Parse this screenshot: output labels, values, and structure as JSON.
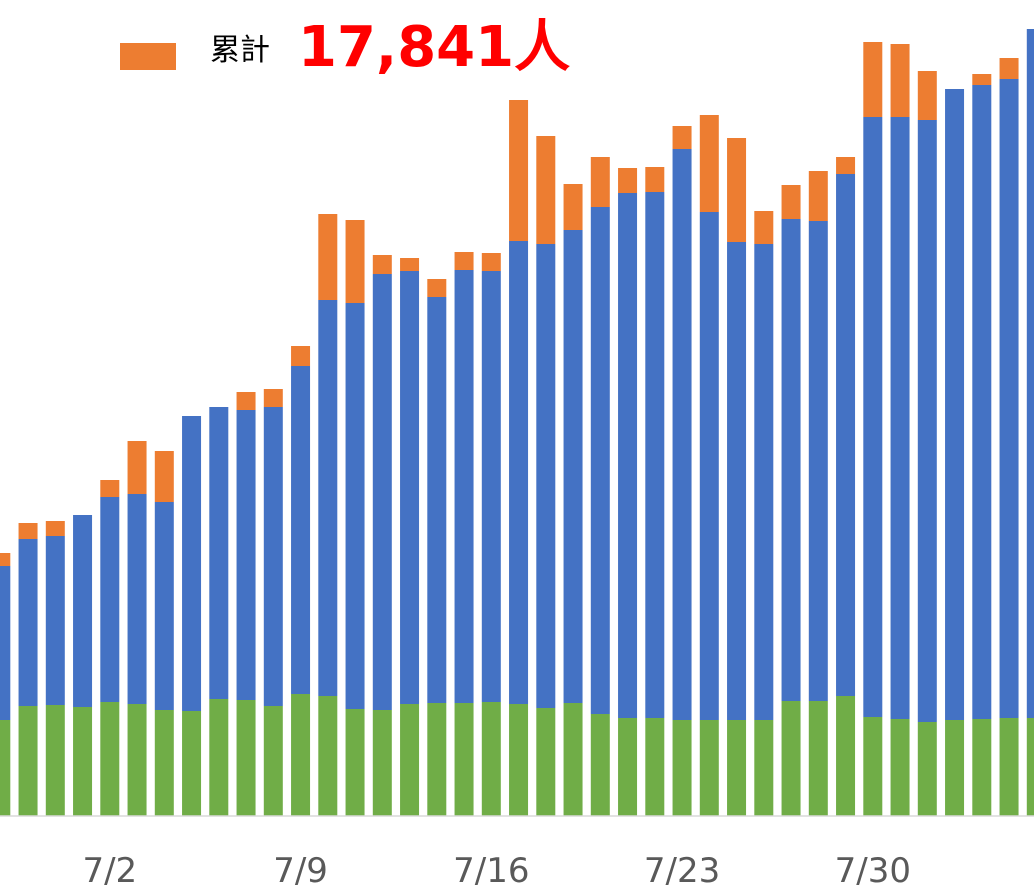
{
  "chart_data": {
    "type": "stacked_bar",
    "categories": [
      null,
      null,
      null,
      null,
      "7/2",
      null,
      null,
      null,
      null,
      null,
      null,
      "7/9",
      null,
      null,
      null,
      null,
      null,
      null,
      "7/16",
      null,
      null,
      null,
      null,
      null,
      null,
      "7/23",
      null,
      null,
      null,
      null,
      null,
      null,
      "7/30",
      null,
      null,
      null,
      null,
      null,
      null
    ],
    "series": [
      {
        "color": "#70ad47",
        "values": [
          96,
          110,
          111,
          109,
          114,
          112,
          106,
          105,
          117,
          116,
          110,
          122,
          120,
          107,
          106,
          112,
          113,
          113,
          114,
          112,
          108,
          113,
          102,
          98,
          98,
          96,
          96,
          96,
          96,
          115,
          115,
          120,
          99,
          97,
          94,
          96,
          97,
          98,
          98
        ]
      },
      {
        "color": "#4472c4",
        "values": [
          154,
          167,
          169,
          192,
          205,
          210,
          208,
          295,
          292,
          290,
          299,
          328,
          396,
          406,
          436,
          433,
          406,
          433,
          431,
          463,
          464,
          473,
          507,
          525,
          526,
          571,
          508,
          478,
          476,
          482,
          480,
          522,
          600,
          602,
          602,
          631,
          634,
          639,
          689
        ]
      },
      {
        "name": "累計",
        "color": "#ed7d31",
        "values": [
          13,
          16,
          15,
          0,
          17,
          53,
          51,
          0,
          0,
          18,
          18,
          20,
          86,
          83,
          19,
          13,
          18,
          18,
          18,
          141,
          108,
          46,
          50,
          25,
          25,
          23,
          97,
          104,
          33,
          34,
          50,
          17,
          75,
          73,
          49,
          0,
          11,
          21,
          0
        ]
      }
    ],
    "annotation": "17,841人",
    "ylim": [
      0,
      816
    ]
  }
}
